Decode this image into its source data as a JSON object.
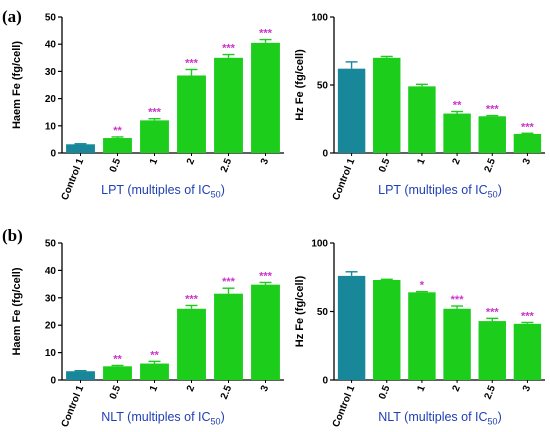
{
  "panel_labels": [
    "(a)",
    "(b)"
  ],
  "colors": {
    "control_bar": "#18879a",
    "treatment_bar": "#1ccd1c",
    "significance": "#cc33cc",
    "xlabel": "#1f3fb4",
    "axis": "#000000"
  },
  "chart_data": [
    {
      "type": "bar",
      "panel": "(a)",
      "ylabel": "Haem Fe (fg/cell)",
      "xlabel": "LPT (multiples of IC",
      "xlabel_sub": "50",
      "xlabel_end": ")",
      "categories": [
        "Control 1",
        "0.5",
        "1",
        "2",
        "2.5",
        "3"
      ],
      "values": [
        3.2,
        5.5,
        12.0,
        28.5,
        35.0,
        40.5
      ],
      "errors": [
        0.2,
        0.4,
        0.6,
        2.2,
        1.2,
        1.2
      ],
      "significance": [
        "",
        "**",
        "***",
        "***",
        "***",
        "***"
      ],
      "yticks": [
        "0",
        "10",
        "20",
        "30",
        "40",
        "50"
      ],
      "ylim": [
        0,
        50
      ],
      "grid": false
    },
    {
      "type": "bar",
      "panel": "(a)",
      "ylabel": "Hz Fe (fg/cell)",
      "xlabel": "LPT (multiples of IC",
      "xlabel_sub": "50",
      "xlabel_end": ")",
      "categories": [
        "Control 1",
        "0.5",
        "1",
        "2",
        "2.5",
        "3"
      ],
      "values": [
        62,
        70,
        49,
        29,
        27,
        14
      ],
      "errors": [
        5,
        1,
        1.5,
        1.5,
        0.5,
        0.5
      ],
      "significance": [
        "",
        "",
        "",
        "**",
        "***",
        "***"
      ],
      "yticks": [
        "0",
        "50",
        "100"
      ],
      "ylim": [
        0,
        100
      ],
      "grid": false
    },
    {
      "type": "bar",
      "panel": "(b)",
      "ylabel": "Haem Fe (fg/cell)",
      "xlabel": "NLT (multiples of IC",
      "xlabel_sub": "50",
      "xlabel_end": ")",
      "categories": [
        "Control 1",
        "0.5",
        "1",
        "2",
        "2.5",
        "3"
      ],
      "values": [
        3.2,
        5.0,
        6.0,
        26.0,
        31.5,
        34.8
      ],
      "errors": [
        0.2,
        0.3,
        0.8,
        1.2,
        2.0,
        0.8
      ],
      "significance": [
        "",
        "**",
        "**",
        "***",
        "***",
        "***"
      ],
      "yticks": [
        "0",
        "10",
        "20",
        "30",
        "40",
        "50"
      ],
      "ylim": [
        0,
        50
      ],
      "grid": false
    },
    {
      "type": "bar",
      "panel": "(b)",
      "ylabel": "Hz Fe (fg/cell)",
      "xlabel": "NLT (multiples of IC",
      "xlabel_sub": "50",
      "xlabel_end": ")",
      "categories": [
        "Control 1",
        "0.5",
        "1",
        "2",
        "2.5",
        "3"
      ],
      "values": [
        76,
        73,
        64,
        52,
        43,
        41
      ],
      "errors": [
        3,
        0.5,
        0.5,
        2,
        2,
        1
      ],
      "significance": [
        "",
        "",
        "*",
        "***",
        "***",
        "***"
      ],
      "yticks": [
        "0",
        "50",
        "100"
      ],
      "ylim": [
        0,
        100
      ],
      "grid": false
    }
  ]
}
